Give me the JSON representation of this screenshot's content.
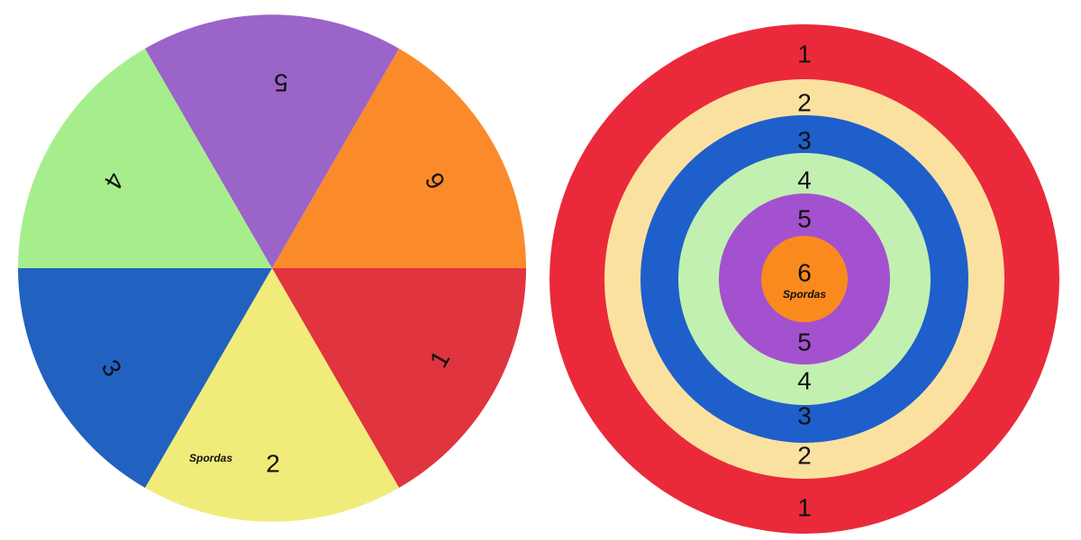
{
  "left_mat": {
    "segments": [
      {
        "label": "1"
      },
      {
        "label": "2"
      },
      {
        "label": "3"
      },
      {
        "label": "4"
      },
      {
        "label": "5"
      },
      {
        "label": "6"
      }
    ],
    "brand": "Spordas"
  },
  "right_mat": {
    "top_labels": [
      "1",
      "2",
      "3",
      "4",
      "5"
    ],
    "center_label": "6",
    "brand": "Spordas",
    "bottom_labels": [
      "5",
      "4",
      "3",
      "2",
      "1"
    ]
  }
}
